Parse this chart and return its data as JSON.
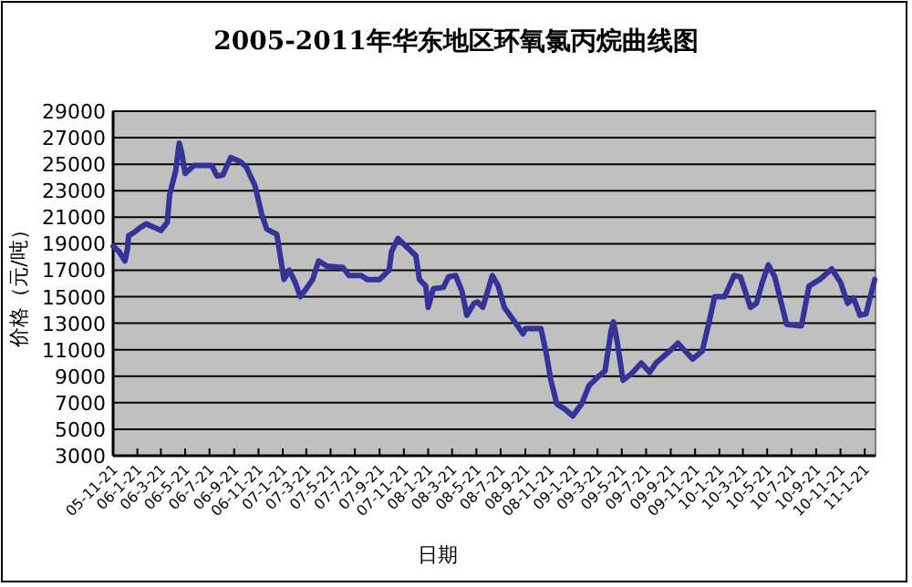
{
  "chart_data": {
    "type": "line",
    "title": "2005-2011年华东地区环氧氯丙烷曲线图",
    "xlabel": "日期",
    "ylabel": "价格（元/吨）",
    "series": [
      {
        "color": "#333399",
        "x": [
          "2005-11-21",
          "2005-12-06",
          "2005-12-21",
          "2005-12-27",
          "2005-12-30",
          "2006-01-15",
          "2006-01-27",
          "2006-02-12",
          "2006-02-27",
          "2006-03-21",
          "2006-04-06",
          "2006-04-12",
          "2006-04-27",
          "2006-05-06",
          "2006-05-12",
          "2006-05-21",
          "2006-06-12",
          "2006-07-27",
          "2006-08-09",
          "2006-08-24",
          "2006-09-12",
          "2006-10-06",
          "2006-10-21",
          "2006-11-12",
          "2006-11-30",
          "2006-12-12",
          "2007-01-06",
          "2007-01-12",
          "2007-01-24",
          "2007-02-06",
          "2007-02-21",
          "2007-03-06",
          "2007-03-21",
          "2007-04-06",
          "2007-04-21",
          "2007-05-12",
          "2007-06-21",
          "2007-07-06",
          "2007-08-06",
          "2007-08-21",
          "2007-09-21",
          "2007-10-15",
          "2007-10-21",
          "2007-11-06",
          "2007-11-30",
          "2007-12-21",
          "2007-12-30",
          "2008-01-15",
          "2008-01-21",
          "2008-02-03",
          "2008-02-28",
          "2008-03-12",
          "2008-03-30",
          "2008-04-15",
          "2008-04-27",
          "2008-05-15",
          "2008-05-24",
          "2008-06-06",
          "2008-06-30",
          "2008-07-15",
          "2008-07-30",
          "2008-08-30",
          "2008-09-15",
          "2008-09-21",
          "2008-10-30",
          "2008-11-12",
          "2008-11-24",
          "2008-12-09",
          "2008-12-30",
          "2009-01-18",
          "2009-02-09",
          "2009-02-28",
          "2009-03-24",
          "2009-04-09",
          "2009-04-24",
          "2009-04-30",
          "2009-05-09",
          "2009-05-24",
          "2009-06-15",
          "2009-07-09",
          "2009-07-30",
          "2009-08-15",
          "2009-09-15",
          "2009-10-09",
          "2009-10-24",
          "2009-11-15",
          "2009-12-09",
          "2009-12-27",
          "2010-01-09",
          "2010-02-03",
          "2010-02-27",
          "2010-03-15",
          "2010-04-09",
          "2010-04-24",
          "2010-05-09",
          "2010-05-24",
          "2010-06-09",
          "2010-07-09",
          "2010-08-15",
          "2010-09-03",
          "2010-09-30",
          "2010-10-30",
          "2010-11-21",
          "2010-12-09",
          "2010-12-24",
          "2011-01-09",
          "2011-01-24",
          "2011-02-15"
        ],
        "values": [
          18800,
          18400,
          17700,
          18600,
          19600,
          19900,
          20200,
          20500,
          20300,
          20000,
          20600,
          22700,
          24500,
          26600,
          25900,
          24300,
          24900,
          24900,
          24100,
          24200,
          25500,
          25200,
          24800,
          23400,
          21100,
          20100,
          19700,
          18600,
          16300,
          17000,
          16100,
          15000,
          15600,
          16300,
          17700,
          17300,
          17200,
          16600,
          16600,
          16300,
          16300,
          17000,
          18400,
          19400,
          18700,
          18100,
          16300,
          15800,
          14200,
          15600,
          15700,
          16500,
          16600,
          15400,
          13600,
          14500,
          14600,
          14200,
          16600,
          15800,
          14200,
          12900,
          12200,
          12600,
          12600,
          10800,
          8700,
          6900,
          6500,
          6000,
          6900,
          8300,
          9000,
          9400,
          12400,
          13100,
          11700,
          8700,
          9200,
          10000,
          9300,
          10000,
          10800,
          11500,
          11000,
          10300,
          10900,
          13200,
          15000,
          15000,
          16600,
          16500,
          14200,
          14500,
          16100,
          17400,
          16500,
          12900,
          12800,
          15800,
          16300,
          17100,
          16100,
          14500,
          14900,
          13600,
          13700,
          16300
        ]
      }
    ],
    "xlim": [
      "2005-11-21",
      "2011-02-17"
    ],
    "xticks": [
      {
        "value": "2005-11-21",
        "label": "05-11-21"
      },
      {
        "value": "2006-01-21",
        "label": "06-1-21"
      },
      {
        "value": "2006-03-21",
        "label": "06-3-21"
      },
      {
        "value": "2006-05-21",
        "label": "06-5-21"
      },
      {
        "value": "2006-07-21",
        "label": "06-7-21"
      },
      {
        "value": "2006-09-21",
        "label": "06-9-21"
      },
      {
        "value": "2006-11-21",
        "label": "06-11-21"
      },
      {
        "value": "2007-01-21",
        "label": "07-1-21"
      },
      {
        "value": "2007-03-21",
        "label": "07-3-21"
      },
      {
        "value": "2007-05-21",
        "label": "07-5-21"
      },
      {
        "value": "2007-07-21",
        "label": "07-7-21"
      },
      {
        "value": "2007-09-21",
        "label": "07-9-21"
      },
      {
        "value": "2007-11-21",
        "label": "07-11-21"
      },
      {
        "value": "2008-01-21",
        "label": "08-1-21"
      },
      {
        "value": "2008-03-21",
        "label": "08-3-21"
      },
      {
        "value": "2008-05-21",
        "label": "08-5-21"
      },
      {
        "value": "2008-07-21",
        "label": "08-7-21"
      },
      {
        "value": "2008-09-21",
        "label": "08-9-21"
      },
      {
        "value": "2008-11-21",
        "label": "08-11-21"
      },
      {
        "value": "2009-01-21",
        "label": "09-1-21"
      },
      {
        "value": "2009-03-21",
        "label": "09-3-21"
      },
      {
        "value": "2009-05-21",
        "label": "09-5-21"
      },
      {
        "value": "2009-07-21",
        "label": "09-7-21"
      },
      {
        "value": "2009-09-21",
        "label": "09-9-21"
      },
      {
        "value": "2009-11-21",
        "label": "09-11-21"
      },
      {
        "value": "2010-01-21",
        "label": "10-1-21"
      },
      {
        "value": "2010-03-21",
        "label": "10-3-21"
      },
      {
        "value": "2010-05-21",
        "label": "10-5-21"
      },
      {
        "value": "2010-07-21",
        "label": "10-7-21"
      },
      {
        "value": "2010-09-21",
        "label": "10-9-21"
      },
      {
        "value": "2010-11-21",
        "label": "10-11-21"
      },
      {
        "value": "2011-01-21",
        "label": "11-1-21"
      }
    ],
    "ylim": [
      3000,
      29000
    ],
    "yticks": [
      3000,
      5000,
      7000,
      9000,
      11000,
      13000,
      15000,
      17000,
      19000,
      21000,
      23000,
      25000,
      27000,
      29000
    ],
    "grid": "y",
    "marker": "none",
    "line_style": "solid"
  }
}
